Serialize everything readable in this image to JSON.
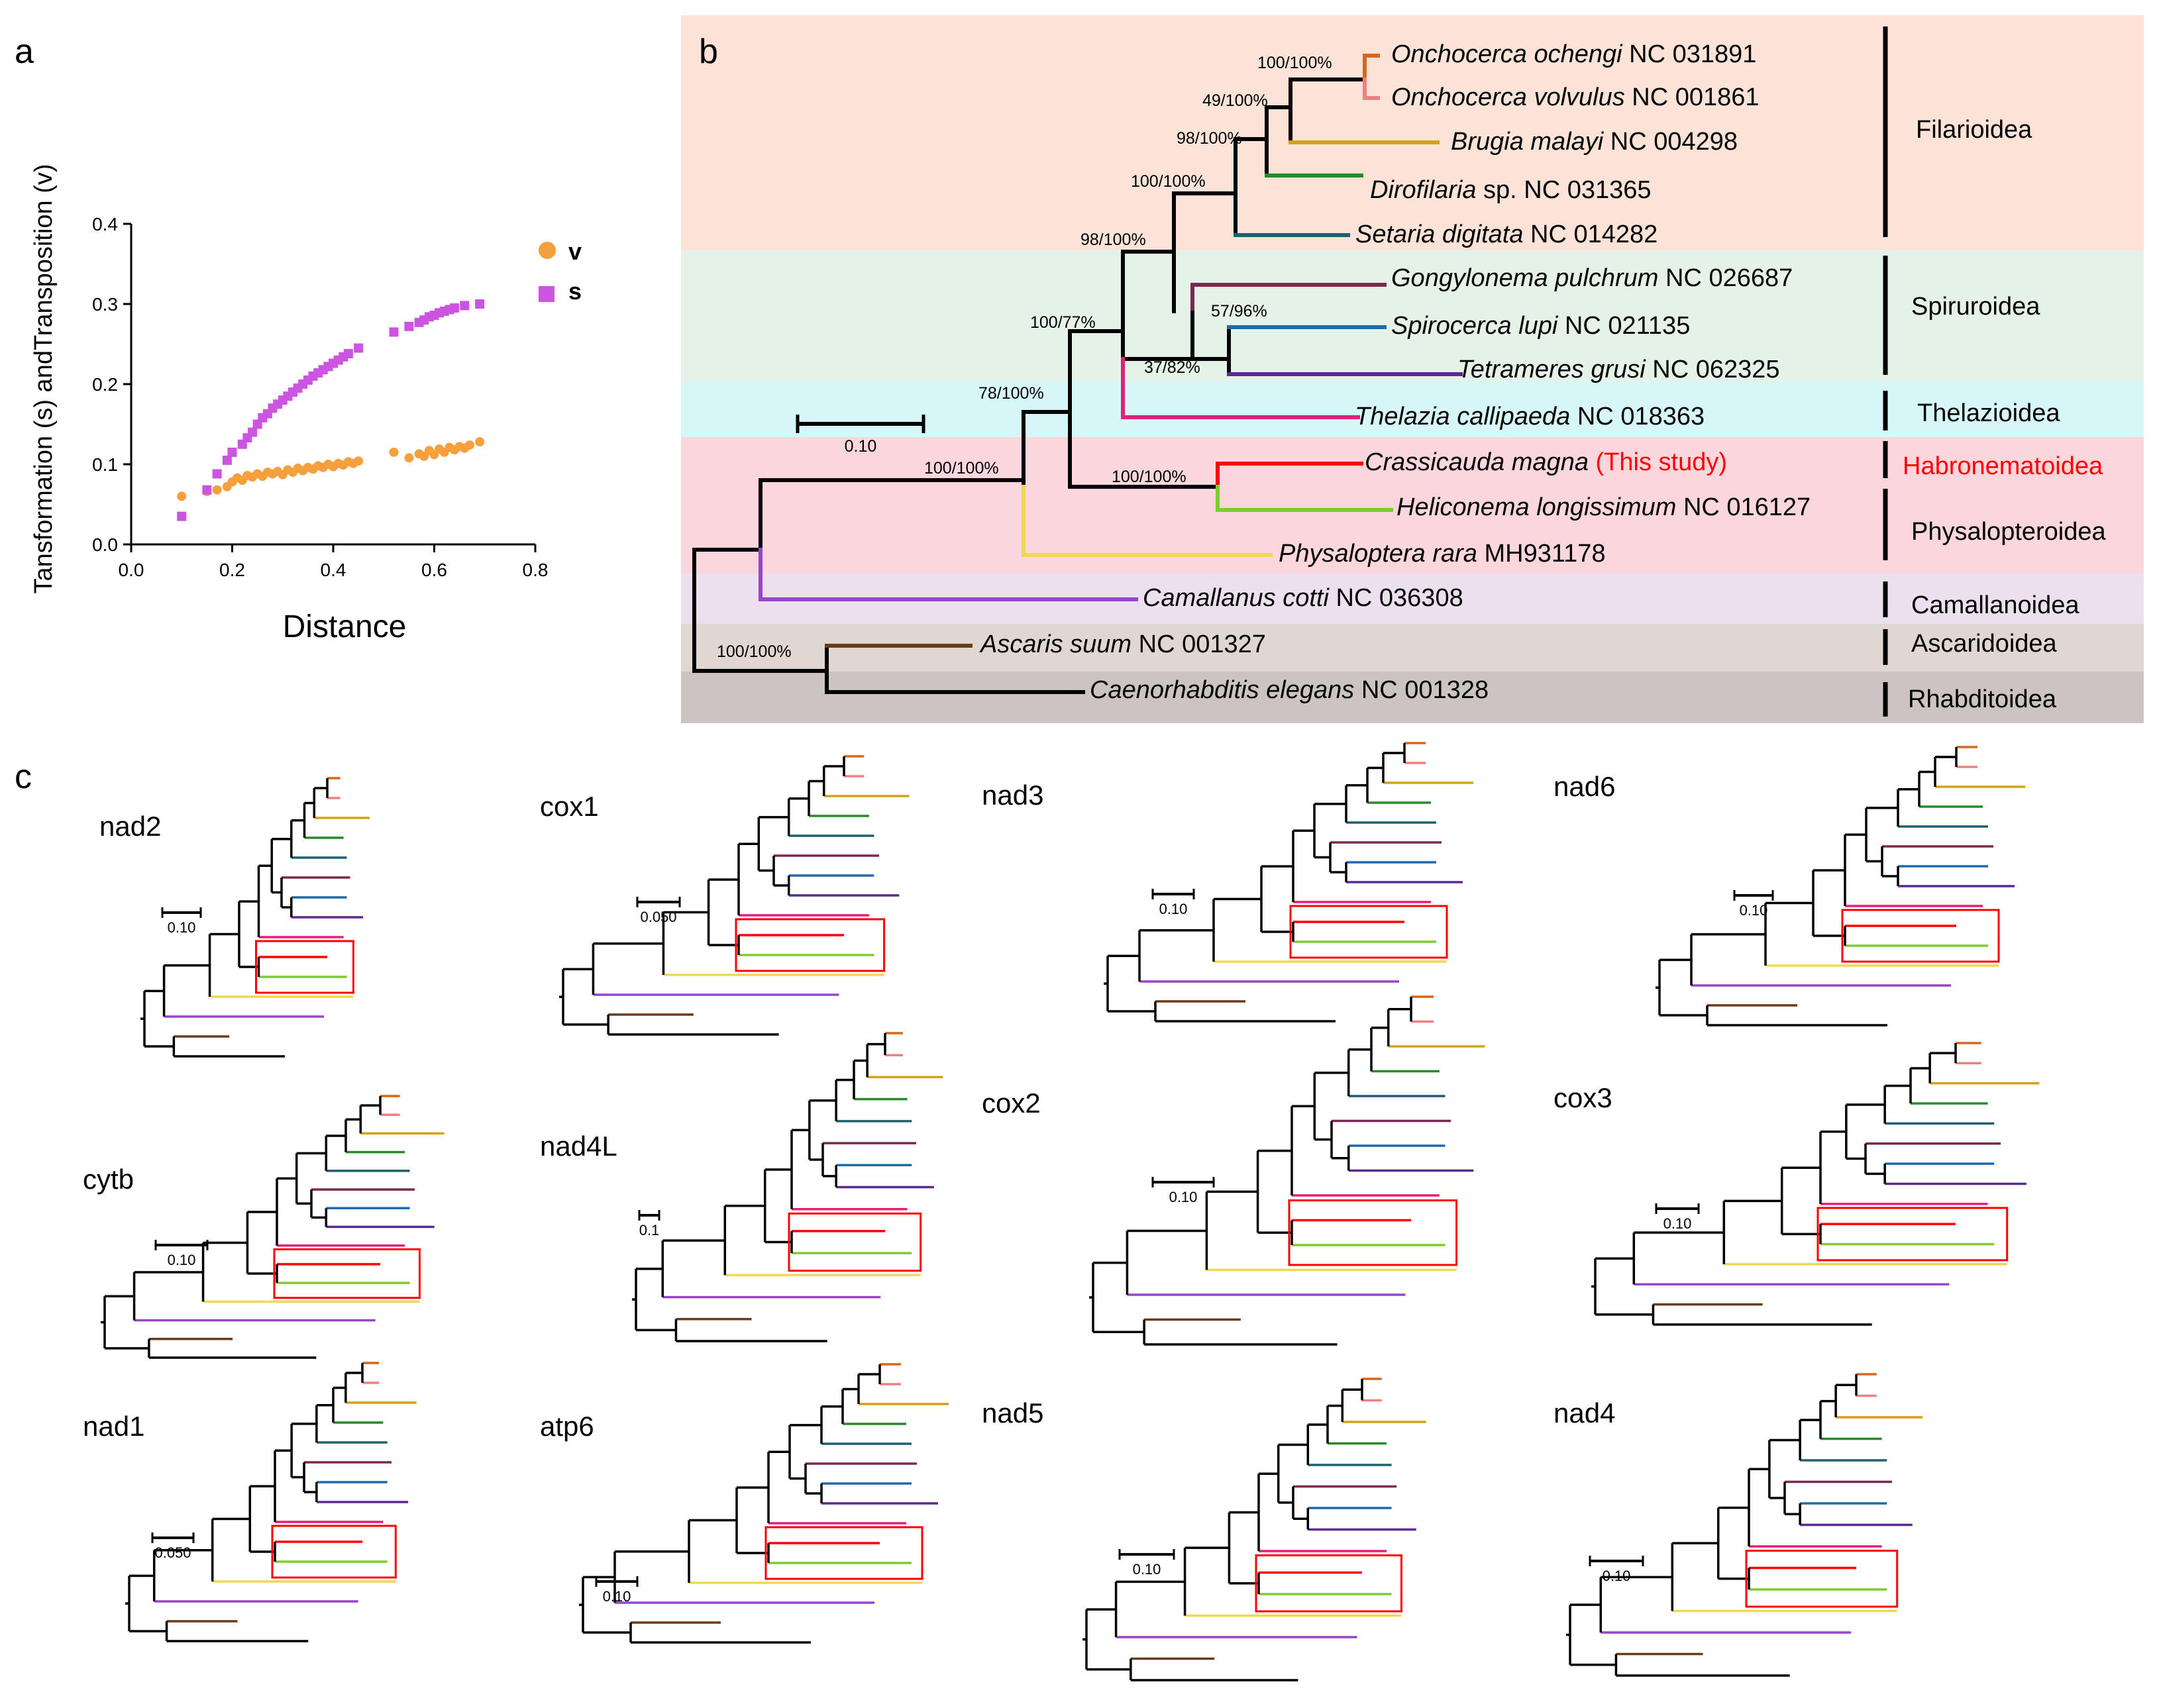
{
  "panel_labels": {
    "a": "a",
    "b": "b",
    "c": "c"
  },
  "chart_data": {
    "type": "scatter",
    "title": "",
    "xlabel": "Distance",
    "ylabel": "Tansformation (s) andTransposition (v)",
    "xlim": [
      0.0,
      0.8
    ],
    "ylim": [
      0.0,
      0.4
    ],
    "xticks": [
      "0.0",
      "0.2",
      "0.4",
      "0.6",
      "0.8"
    ],
    "yticks": [
      "0.0",
      "0.1",
      "0.2",
      "0.3",
      "0.4"
    ],
    "legend": [
      {
        "label": "v",
        "color": "#f5a03c",
        "marker": "circle"
      },
      {
        "label": "s",
        "color": "#cc55e0",
        "marker": "square"
      }
    ],
    "series": [
      {
        "name": "v",
        "color": "#f5a03c",
        "marker": "circle",
        "points": [
          [
            0.1,
            0.06
          ],
          [
            0.15,
            0.066
          ],
          [
            0.17,
            0.068
          ],
          [
            0.19,
            0.072
          ],
          [
            0.2,
            0.078
          ],
          [
            0.21,
            0.083
          ],
          [
            0.22,
            0.08
          ],
          [
            0.23,
            0.086
          ],
          [
            0.24,
            0.084
          ],
          [
            0.25,
            0.088
          ],
          [
            0.26,
            0.085
          ],
          [
            0.27,
            0.09
          ],
          [
            0.28,
            0.088
          ],
          [
            0.29,
            0.091
          ],
          [
            0.3,
            0.087
          ],
          [
            0.31,
            0.093
          ],
          [
            0.32,
            0.09
          ],
          [
            0.33,
            0.095
          ],
          [
            0.34,
            0.092
          ],
          [
            0.35,
            0.096
          ],
          [
            0.36,
            0.094
          ],
          [
            0.37,
            0.098
          ],
          [
            0.38,
            0.096
          ],
          [
            0.39,
            0.1
          ],
          [
            0.4,
            0.097
          ],
          [
            0.41,
            0.101
          ],
          [
            0.42,
            0.099
          ],
          [
            0.43,
            0.103
          ],
          [
            0.44,
            0.101
          ],
          [
            0.45,
            0.104
          ],
          [
            0.52,
            0.115
          ],
          [
            0.55,
            0.108
          ],
          [
            0.57,
            0.113
          ],
          [
            0.58,
            0.11
          ],
          [
            0.59,
            0.117
          ],
          [
            0.6,
            0.112
          ],
          [
            0.61,
            0.119
          ],
          [
            0.62,
            0.115
          ],
          [
            0.63,
            0.121
          ],
          [
            0.64,
            0.118
          ],
          [
            0.65,
            0.122
          ],
          [
            0.66,
            0.12
          ],
          [
            0.67,
            0.124
          ],
          [
            0.69,
            0.128
          ]
        ]
      },
      {
        "name": "s",
        "color": "#cc55e0",
        "marker": "square",
        "points": [
          [
            0.1,
            0.035
          ],
          [
            0.15,
            0.068
          ],
          [
            0.17,
            0.088
          ],
          [
            0.19,
            0.105
          ],
          [
            0.2,
            0.115
          ],
          [
            0.22,
            0.125
          ],
          [
            0.23,
            0.133
          ],
          [
            0.24,
            0.14
          ],
          [
            0.25,
            0.15
          ],
          [
            0.26,
            0.158
          ],
          [
            0.27,
            0.163
          ],
          [
            0.28,
            0.17
          ],
          [
            0.29,
            0.175
          ],
          [
            0.3,
            0.18
          ],
          [
            0.31,
            0.185
          ],
          [
            0.32,
            0.19
          ],
          [
            0.33,
            0.195
          ],
          [
            0.34,
            0.2
          ],
          [
            0.35,
            0.205
          ],
          [
            0.36,
            0.21
          ],
          [
            0.37,
            0.214
          ],
          [
            0.38,
            0.218
          ],
          [
            0.39,
            0.222
          ],
          [
            0.4,
            0.226
          ],
          [
            0.41,
            0.23
          ],
          [
            0.42,
            0.234
          ],
          [
            0.43,
            0.238
          ],
          [
            0.45,
            0.245
          ],
          [
            0.52,
            0.265
          ],
          [
            0.55,
            0.272
          ],
          [
            0.57,
            0.277
          ],
          [
            0.58,
            0.28
          ],
          [
            0.59,
            0.284
          ],
          [
            0.6,
            0.286
          ],
          [
            0.61,
            0.289
          ],
          [
            0.62,
            0.291
          ],
          [
            0.63,
            0.293
          ],
          [
            0.64,
            0.295
          ],
          [
            0.66,
            0.298
          ],
          [
            0.69,
            0.3
          ]
        ]
      }
    ]
  },
  "tree_b": {
    "scale_label": "0.10",
    "taxa": [
      {
        "genus": "Onchocerca ochengi",
        "acc": " NC 031891"
      },
      {
        "genus": "Onchocerca volvulus",
        "acc": " NC 001861"
      },
      {
        "genus": "Brugia malayi",
        "acc": " NC 004298"
      },
      {
        "genus": "Dirofilaria",
        "acc": " sp. NC 031365"
      },
      {
        "genus": "Setaria digitata",
        "acc": " NC 014282"
      },
      {
        "genus": "Gongylonema pulchrum",
        "acc": " NC 026687"
      },
      {
        "genus": "Spirocerca lupi",
        "acc": " NC 021135"
      },
      {
        "genus": "Tetrameres grusi",
        "acc": " NC 062325"
      },
      {
        "genus": "Thelazia callipaeda",
        "acc": " NC 018363"
      },
      {
        "genus": "Crassicauda magna",
        "acc": " (This study)"
      },
      {
        "genus": "Heliconema longissimum",
        "acc": " NC 016127"
      },
      {
        "genus": "Physaloptera rara",
        "acc": " MH931178"
      },
      {
        "genus": "Camallanus cotti",
        "acc": " NC 036308"
      },
      {
        "genus": "Ascaris suum",
        "acc": " NC 001327"
      },
      {
        "genus": "Caenorhabditis elegans",
        "acc": " NC 001328"
      }
    ],
    "supports": [
      "100/100%",
      "49/100%",
      "98/100%",
      "100/100%",
      "98/100%",
      "57/96%",
      "37/82%",
      "100/77%",
      "78/100%",
      "100/100%",
      "100/100%",
      "100/100%"
    ],
    "superfamilies": [
      "Filarioidea",
      "Spiruroidea",
      "Thelazioidea",
      "Habronematoidea",
      "Physalopteroidea",
      "Camallanoidea",
      "Ascaridoidea",
      "Rhabditoidea"
    ]
  },
  "small_trees": [
    {
      "label": "nad2",
      "scale": "0.10"
    },
    {
      "label": "cox1",
      "scale": "0.050"
    },
    {
      "label": "nad3",
      "scale": "0.10"
    },
    {
      "label": "nad6",
      "scale": "0.10"
    },
    {
      "label": "cytb",
      "scale": "0.10"
    },
    {
      "label": "nad4L",
      "scale": "0.1"
    },
    {
      "label": "cox2",
      "scale": "0.10"
    },
    {
      "label": "cox3",
      "scale": "0.10"
    },
    {
      "label": "nad1",
      "scale": "0.050"
    },
    {
      "label": "atp6",
      "scale": "0.10"
    },
    {
      "label": "nad5",
      "scale": "0.10"
    },
    {
      "label": "nad4",
      "scale": "0.10"
    }
  ]
}
